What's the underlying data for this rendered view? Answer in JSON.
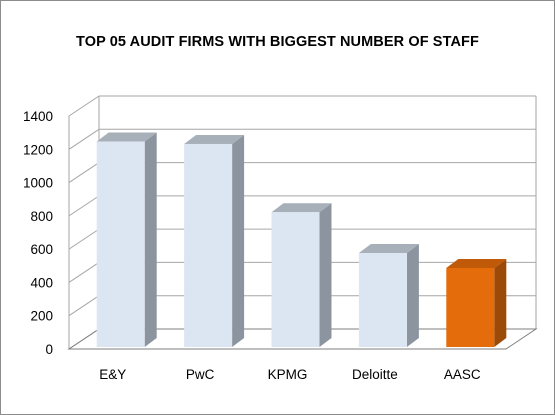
{
  "chart_data": {
    "type": "bar",
    "title": "TOP 05 AUDIT FIRMS WITH BIGGEST NUMBER OF STAFF",
    "xlabel": "",
    "ylabel": "",
    "categories": [
      "E&Y",
      "PwC",
      "KPMG",
      "Deloitte",
      "AASC"
    ],
    "values": [
      1235,
      1220,
      810,
      565,
      475
    ],
    "ylim": [
      0,
      1400
    ],
    "yticks": [
      0,
      200,
      400,
      600,
      800,
      1000,
      1200,
      1400
    ],
    "grid": true,
    "legend": "none",
    "style": "3d-column",
    "colors": {
      "default_front": "#dce6f2",
      "default_side": "#8c959f",
      "default_top": "#a7afb8",
      "highlight_front": "#e46c0a",
      "highlight_side": "#9c4a08",
      "highlight_top": "#c05a08",
      "gridline": "#a6a6a6",
      "floor": "#7f7f7f"
    },
    "highlight_category": "AASC"
  }
}
